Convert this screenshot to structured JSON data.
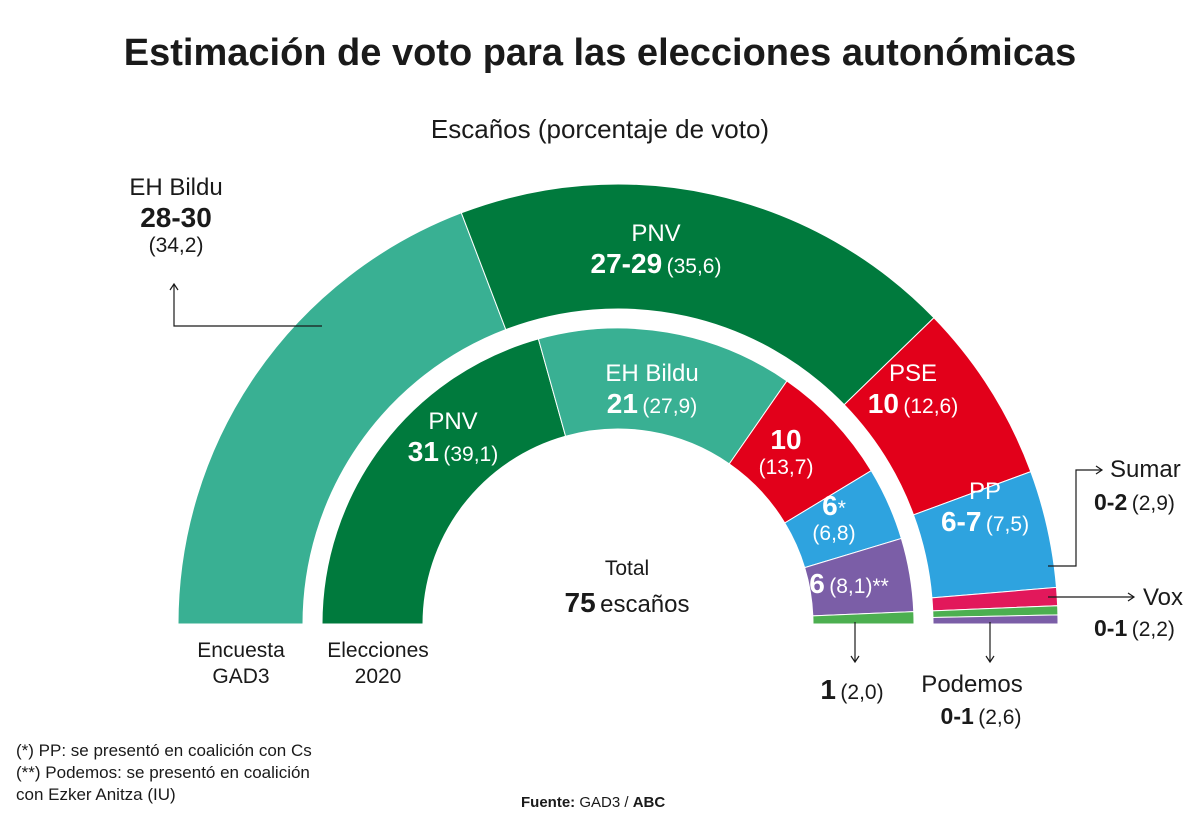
{
  "title": "Estimación de voto para las elecciones autonómicas",
  "subtitle": "Escaños (porcentaje de voto)",
  "center": {
    "label": "Total",
    "number": "75",
    "unit": "escaños"
  },
  "rings": {
    "outer_label": [
      "Encuesta",
      "GAD3"
    ],
    "inner_label": [
      "Elecciones",
      "2020"
    ]
  },
  "chart_data": [
    {
      "type": "pie",
      "variant": "half-donut",
      "name": "Encuesta GAD3",
      "unit": "escaños",
      "total_seats": 75,
      "slices": [
        {
          "party": "EH Bildu",
          "seats": "28-30",
          "seats_mid": 29,
          "pct": "34,2",
          "color": "#39b093"
        },
        {
          "party": "PNV",
          "seats": "27-29",
          "seats_mid": 28,
          "pct": "35,6",
          "color": "#007a3d"
        },
        {
          "party": "PSE",
          "seats": "10",
          "seats_mid": 10,
          "pct": "12,6",
          "color": "#e2001a"
        },
        {
          "party": "PP",
          "seats": "6-7",
          "seats_mid": 6.5,
          "pct": "7,5",
          "color": "#2ea3df"
        },
        {
          "party": "Sumar",
          "seats": "0-2",
          "seats_mid": 1,
          "pct": "2,9",
          "color": "#e2185b"
        },
        {
          "party": "Vox",
          "seats": "0-1",
          "seats_mid": 0.5,
          "pct": "2,2",
          "color": "#4caf50"
        },
        {
          "party": "Podemos",
          "seats": "0-1",
          "seats_mid": 0.5,
          "pct": "2,6",
          "color": "#7b5ea7"
        }
      ]
    },
    {
      "type": "pie",
      "variant": "half-donut",
      "name": "Elecciones 2020",
      "unit": "escaños",
      "total_seats": 75,
      "slices": [
        {
          "party": "PNV",
          "seats": "31",
          "seats_mid": 31,
          "pct": "39,1",
          "color": "#007a3d"
        },
        {
          "party": "EH Bildu",
          "seats": "21",
          "seats_mid": 21,
          "pct": "27,9",
          "color": "#39b093"
        },
        {
          "party": "PSE",
          "seats": "10",
          "seats_mid": 10,
          "pct": "13,7",
          "color": "#e2001a"
        },
        {
          "party": "PP",
          "seats": "6",
          "seats_mid": 6,
          "pct": "6,8",
          "color": "#2ea3df",
          "note": "*"
        },
        {
          "party": "Podemos",
          "seats": "6",
          "seats_mid": 6,
          "pct": "8,1",
          "color": "#7b5ea7",
          "note": "**"
        },
        {
          "party": "Vox",
          "seats": "1",
          "seats_mid": 1,
          "pct": "2,0",
          "color": "#4caf50"
        }
      ]
    }
  ],
  "notes": [
    "(*) PP: se presentó en coalición con Cs",
    "(**) Podemos: se presentó en coalición",
    "con Ezker Anitza (IU)"
  ],
  "source": {
    "label": "Fuente:",
    "text": "GAD3 /",
    "brand": "ABC"
  }
}
